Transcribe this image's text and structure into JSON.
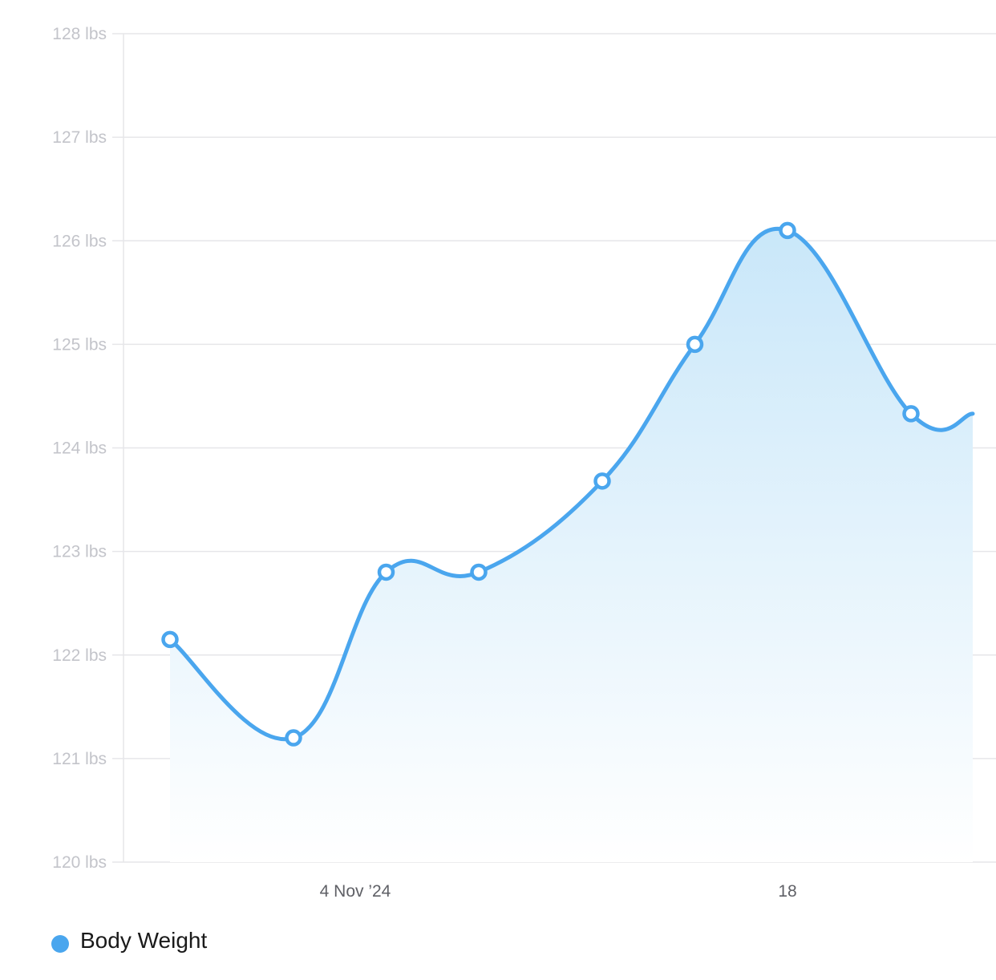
{
  "chart_data": {
    "type": "area",
    "title": "",
    "xlabel": "",
    "ylabel": "",
    "unit": "lbs",
    "ylim": [
      120,
      128
    ],
    "y_ticks": [
      "128 lbs",
      "127 lbs",
      "126 lbs",
      "125 lbs",
      "124 lbs",
      "123 lbs",
      "122 lbs",
      "121 lbs",
      "120 lbs"
    ],
    "x_tick_labels": [
      "4 Nov ’24",
      "18"
    ],
    "x": [
      "2024-10-29",
      "2024-11-02",
      "2024-11-05",
      "2024-11-08",
      "2024-11-12",
      "2024-11-15",
      "2024-11-18",
      "2024-11-22",
      "2024-11-24"
    ],
    "series": [
      {
        "name": "Body Weight",
        "color": "#4aa6ee",
        "values": [
          122.15,
          121.2,
          122.8,
          122.8,
          123.68,
          125.0,
          126.1,
          124.33,
          124.33
        ]
      }
    ],
    "grid": true,
    "legend": "bottom-left"
  },
  "legend": {
    "label": "Body Weight"
  }
}
